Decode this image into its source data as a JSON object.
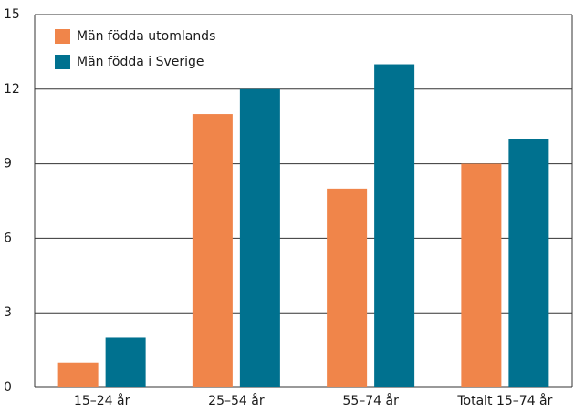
{
  "chart_data": {
    "type": "bar",
    "categories": [
      "15–24 år",
      "25–54 år",
      "55–74 år",
      "Totalt 15–74 år"
    ],
    "series": [
      {
        "name": "Män födda utomlands",
        "color": "#f0854a",
        "values": [
          1,
          11,
          8,
          9
        ]
      },
      {
        "name": "Män födda i Sverige",
        "color": "#00718f",
        "values": [
          2,
          12,
          13,
          10
        ]
      }
    ],
    "ylim": [
      0,
      15
    ],
    "yticks": [
      0,
      3,
      6,
      9,
      12,
      15
    ],
    "grid": true,
    "legend": "top-left"
  }
}
